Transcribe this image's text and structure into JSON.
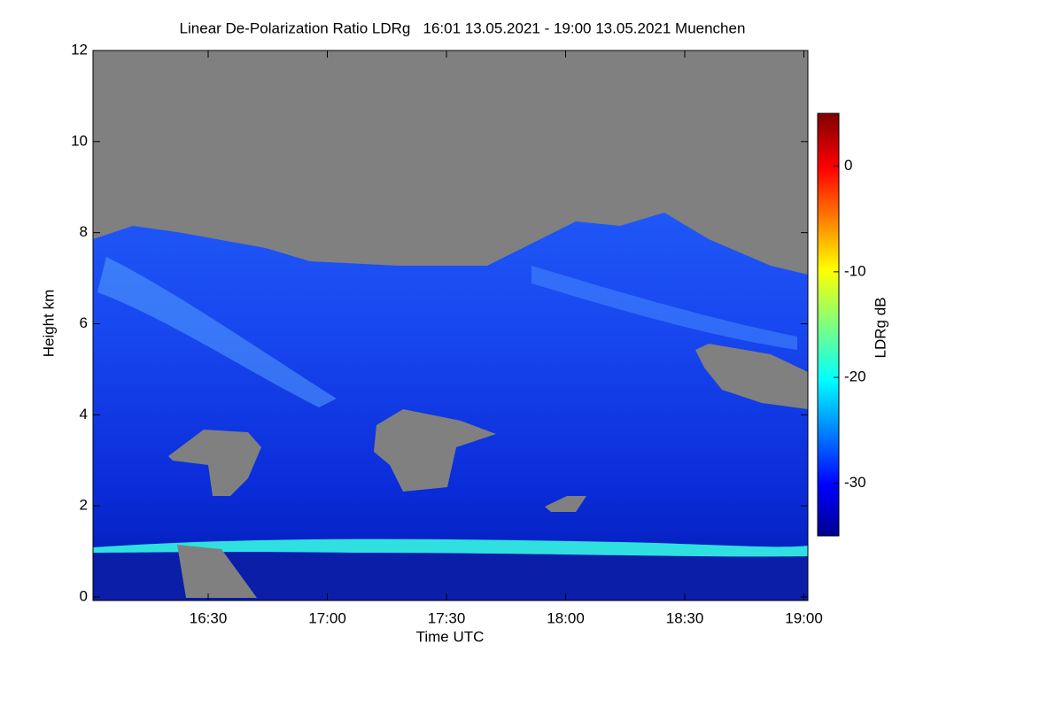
{
  "chart_data": {
    "type": "heatmap",
    "title": "Linear De-Polarization Ratio LDRg   16:01 13.05.2021 - 19:00 13.05.2021 Muenchen",
    "x_label": "Time UTC",
    "y_label": "Height km",
    "colorbar_label": "LDRg dB",
    "xlim": [
      961,
      1141
    ],
    "xticks": [
      {
        "value": 990,
        "label": "16:30"
      },
      {
        "value": 1020,
        "label": "17:00"
      },
      {
        "value": 1050,
        "label": "17:30"
      },
      {
        "value": 1080,
        "label": "18:00"
      },
      {
        "value": 1110,
        "label": "18:30"
      },
      {
        "value": 1140,
        "label": "19:00"
      }
    ],
    "ylim": [
      0,
      12
    ],
    "yticks": [
      0,
      2,
      4,
      6,
      8,
      10,
      12
    ],
    "zlim": [
      -35,
      5
    ],
    "zticks": [
      0,
      -10,
      -20,
      -30
    ]
  }
}
